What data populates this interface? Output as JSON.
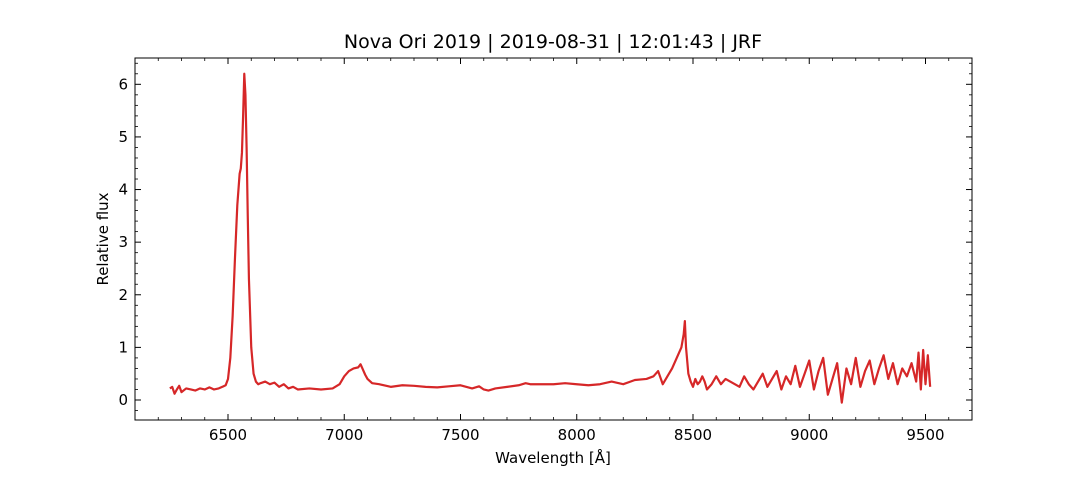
{
  "chart_data": {
    "type": "line",
    "title": "Nova Ori 2019 | 2019-08-31 | 12:01:43 | JRF",
    "xlabel": "Wavelength [Å]",
    "ylabel": "Relative flux",
    "xlim": [
      6100,
      9700
    ],
    "ylim": [
      -0.38,
      6.5
    ],
    "x_ticks": [
      6500,
      7000,
      7500,
      8000,
      8500,
      9000,
      9500
    ],
    "y_ticks": [
      0,
      1,
      2,
      3,
      4,
      5,
      6
    ],
    "x_minor_step": 100,
    "y_minor_step": 0.2,
    "line_color": "#d62728",
    "grid": false,
    "series": [
      {
        "x": [
          6250,
          6260,
          6270,
          6280,
          6290,
          6300,
          6320,
          6340,
          6360,
          6380,
          6400,
          6420,
          6440,
          6460,
          6480,
          6490,
          6500,
          6510,
          6520,
          6530,
          6540,
          6550,
          6555,
          6560,
          6565,
          6570,
          6575,
          6580,
          6585,
          6590,
          6600,
          6610,
          6620,
          6630,
          6640,
          6660,
          6680,
          6700,
          6720,
          6740,
          6760,
          6780,
          6800,
          6850,
          6900,
          6950,
          6980,
          7000,
          7020,
          7040,
          7060,
          7070,
          7080,
          7090,
          7100,
          7120,
          7150,
          7200,
          7250,
          7300,
          7350,
          7400,
          7450,
          7500,
          7550,
          7580,
          7600,
          7620,
          7650,
          7700,
          7750,
          7780,
          7800,
          7850,
          7900,
          7950,
          8000,
          8050,
          8100,
          8150,
          8200,
          8250,
          8300,
          8330,
          8350,
          8370,
          8390,
          8410,
          8430,
          8440,
          8450,
          8460,
          8465,
          8470,
          8480,
          8490,
          8500,
          8510,
          8520,
          8530,
          8540,
          8550,
          8560,
          8580,
          8600,
          8620,
          8640,
          8660,
          8680,
          8700,
          8720,
          8740,
          8760,
          8780,
          8800,
          8820,
          8840,
          8860,
          8880,
          8900,
          8920,
          8940,
          8960,
          8980,
          9000,
          9020,
          9040,
          9060,
          9080,
          9100,
          9120,
          9140,
          9160,
          9180,
          9200,
          9220,
          9240,
          9260,
          9280,
          9300,
          9320,
          9340,
          9360,
          9380,
          9400,
          9420,
          9440,
          9460,
          9470,
          9480,
          9490,
          9500,
          9510,
          9520
        ],
        "y": [
          0.22,
          0.25,
          0.12,
          0.2,
          0.27,
          0.15,
          0.22,
          0.2,
          0.18,
          0.22,
          0.2,
          0.24,
          0.2,
          0.22,
          0.26,
          0.28,
          0.4,
          0.8,
          1.6,
          2.7,
          3.7,
          4.3,
          4.4,
          4.7,
          5.4,
          6.2,
          5.8,
          4.8,
          3.5,
          2.3,
          1.0,
          0.5,
          0.35,
          0.3,
          0.32,
          0.35,
          0.3,
          0.33,
          0.25,
          0.3,
          0.22,
          0.25,
          0.2,
          0.22,
          0.2,
          0.22,
          0.3,
          0.45,
          0.55,
          0.6,
          0.62,
          0.68,
          0.58,
          0.48,
          0.4,
          0.32,
          0.3,
          0.25,
          0.28,
          0.27,
          0.25,
          0.24,
          0.26,
          0.28,
          0.22,
          0.26,
          0.2,
          0.18,
          0.22,
          0.25,
          0.28,
          0.32,
          0.3,
          0.3,
          0.3,
          0.32,
          0.3,
          0.28,
          0.3,
          0.35,
          0.3,
          0.38,
          0.4,
          0.45,
          0.55,
          0.3,
          0.45,
          0.6,
          0.8,
          0.9,
          1.0,
          1.25,
          1.5,
          1.0,
          0.5,
          0.35,
          0.25,
          0.4,
          0.3,
          0.35,
          0.45,
          0.35,
          0.2,
          0.3,
          0.45,
          0.3,
          0.4,
          0.35,
          0.3,
          0.25,
          0.45,
          0.3,
          0.2,
          0.35,
          0.5,
          0.25,
          0.4,
          0.55,
          0.2,
          0.45,
          0.3,
          0.65,
          0.25,
          0.5,
          0.75,
          0.2,
          0.55,
          0.8,
          0.1,
          0.4,
          0.7,
          -0.05,
          0.6,
          0.3,
          0.8,
          0.25,
          0.55,
          0.75,
          0.3,
          0.6,
          0.85,
          0.4,
          0.7,
          0.3,
          0.6,
          0.45,
          0.7,
          0.35,
          0.9,
          0.2,
          0.95,
          0.3,
          0.85,
          0.25
        ]
      }
    ]
  }
}
